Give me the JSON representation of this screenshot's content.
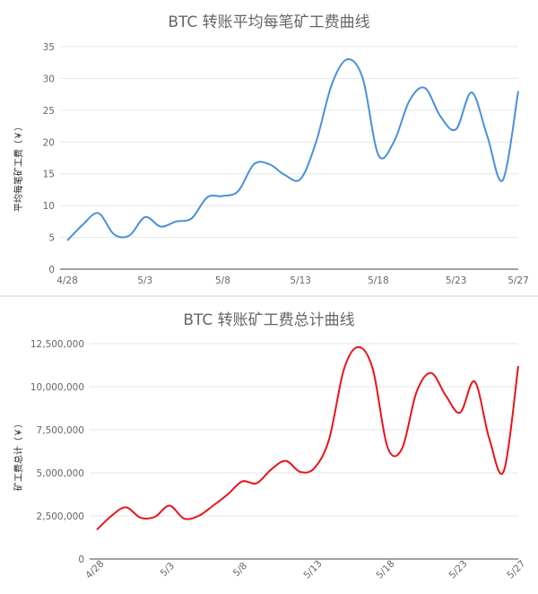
{
  "chart_data": [
    {
      "type": "line",
      "title": "BTC 转账平均每笔矿工费曲线",
      "ylabel": "平均每笔矿工费（￥）",
      "xlabel": "",
      "ylim": [
        0,
        35
      ],
      "yticks": [
        0,
        5,
        10,
        15,
        20,
        25,
        30,
        35
      ],
      "ytick_labels": [
        "0",
        "5",
        "10",
        "15",
        "20",
        "25",
        "30",
        "35"
      ],
      "x_tick_labels": [
        "4/28",
        "5/3",
        "5/8",
        "5/13",
        "5/18",
        "5/23",
        "5/27"
      ],
      "x_tick_index": [
        0,
        5,
        10,
        15,
        20,
        25,
        29
      ],
      "grid": true,
      "series": [
        {
          "color": "#4a8fdb",
          "values": [
            4.5,
            7.0,
            8.8,
            5.5,
            5.3,
            8.2,
            6.7,
            7.5,
            8.0,
            11.3,
            11.5,
            12.3,
            16.5,
            16.5,
            14.8,
            14.2,
            20.0,
            29.0,
            33.0,
            30.0,
            18.0,
            20.0,
            26.5,
            28.5,
            24.0,
            22.0,
            27.8,
            21.0,
            14.0,
            28.0
          ]
        }
      ]
    },
    {
      "type": "line",
      "title": "BTC 转账矿工费总计曲线",
      "ylabel": "矿工费总计（￥）",
      "xlabel": "",
      "ylim": [
        0,
        12500000
      ],
      "yticks": [
        0,
        2500000,
        5000000,
        7500000,
        10000000,
        12500000
      ],
      "ytick_labels": [
        "0",
        "2,500,000",
        "5,000,000",
        "7,500,000",
        "10,000,000",
        "12,500,000"
      ],
      "x_tick_labels": [
        "4/28",
        "5/3",
        "5/8",
        "5/13",
        "5/18",
        "5/23",
        "5/27"
      ],
      "x_tick_index": [
        0,
        5,
        10,
        15,
        20,
        25,
        29
      ],
      "grid": true,
      "series": [
        {
          "color": "#e8141b",
          "values": [
            1700000,
            2500000,
            3000000,
            2400000,
            2450000,
            3100000,
            2350000,
            2500000,
            3100000,
            3750000,
            4500000,
            4400000,
            5200000,
            5700000,
            5050000,
            5300000,
            7000000,
            11000000,
            12300000,
            11000000,
            6500000,
            6400000,
            9700000,
            10800000,
            9500000,
            8500000,
            10300000,
            7000000,
            5100000,
            11200000
          ]
        }
      ]
    }
  ]
}
